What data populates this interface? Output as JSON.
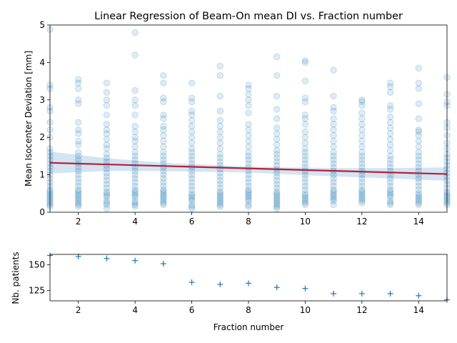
{
  "chart_data": [
    {
      "type": "scatter",
      "title": "Linear Regression of Beam-On mean DI vs. Fraction number",
      "xlabel": "",
      "ylabel": "Mean Isocenter Deviation [mm]",
      "xlim": [
        1,
        15
      ],
      "ylim": [
        0,
        5
      ],
      "xticks": [
        2,
        4,
        6,
        8,
        10,
        12,
        14
      ],
      "yticks": [
        0,
        1,
        2,
        3,
        4,
        5
      ],
      "grid": false,
      "colors": {
        "points": "#1f77b4",
        "regression": "#b22234",
        "ci_band": "#c6dbef"
      },
      "regression": {
        "x": [
          1,
          15
        ],
        "y": [
          1.32,
          1.02
        ]
      },
      "confidence_band": {
        "x": [
          1,
          3,
          5,
          8,
          11,
          13,
          15
        ],
        "upper": [
          1.62,
          1.44,
          1.32,
          1.22,
          1.18,
          1.18,
          1.2
        ],
        "lower": [
          1.04,
          1.1,
          1.1,
          1.06,
          0.96,
          0.9,
          0.84
        ]
      },
      "point_groups": [
        {
          "x": 1,
          "y": [
            4.88,
            3.4,
            3.3,
            2.8,
            2.7,
            2.4,
            2.2,
            2.0,
            1.7,
            1.6,
            1.5,
            1.4,
            1.3,
            1.2,
            1.1,
            1.0,
            0.9,
            0.8,
            0.7,
            0.6,
            0.55,
            0.5,
            0.45,
            0.4,
            0.35,
            0.3,
            0.25,
            0.2,
            0.15
          ]
        },
        {
          "x": 2,
          "y": [
            3.55,
            3.45,
            3.3,
            3.0,
            2.9,
            2.4,
            2.2,
            2.1,
            1.9,
            1.8,
            1.6,
            1.5,
            1.4,
            1.3,
            1.2,
            1.1,
            1.0,
            0.9,
            0.8,
            0.7,
            0.6,
            0.55,
            0.5,
            0.45,
            0.4,
            0.35,
            0.3,
            0.25,
            0.2,
            0.15
          ]
        },
        {
          "x": 3,
          "y": [
            3.45,
            3.2,
            3.0,
            2.85,
            2.6,
            2.35,
            2.2,
            2.1,
            1.95,
            1.8,
            1.7,
            1.55,
            1.45,
            1.35,
            1.25,
            1.15,
            1.05,
            0.95,
            0.85,
            0.75,
            0.65,
            0.55,
            0.5,
            0.45,
            0.4,
            0.3,
            0.25,
            0.2,
            0.1
          ]
        },
        {
          "x": 4,
          "y": [
            4.8,
            4.2,
            3.25,
            3.0,
            2.85,
            2.6,
            2.3,
            2.15,
            2.0,
            1.9,
            1.75,
            1.6,
            1.5,
            1.4,
            1.3,
            1.2,
            1.1,
            1.0,
            0.9,
            0.8,
            0.7,
            0.6,
            0.55,
            0.5,
            0.45,
            0.4,
            0.3,
            0.25,
            0.2,
            0.15
          ]
        },
        {
          "x": 5,
          "y": [
            3.65,
            3.45,
            3.05,
            2.95,
            2.6,
            2.5,
            2.3,
            2.2,
            2.05,
            1.9,
            1.75,
            1.6,
            1.5,
            1.4,
            1.3,
            1.2,
            1.1,
            1.0,
            0.9,
            0.8,
            0.7,
            0.6,
            0.55,
            0.5,
            0.45,
            0.4,
            0.35,
            0.3,
            0.25,
            0.2
          ]
        },
        {
          "x": 6,
          "y": [
            3.45,
            3.05,
            2.95,
            2.7,
            2.6,
            2.45,
            2.3,
            2.15,
            2.0,
            1.85,
            1.7,
            1.6,
            1.5,
            1.4,
            1.3,
            1.2,
            1.1,
            1.0,
            0.9,
            0.8,
            0.7,
            0.6,
            0.5,
            0.45,
            0.4,
            0.35,
            0.3,
            0.2,
            0.15,
            0.1
          ]
        },
        {
          "x": 7,
          "y": [
            3.9,
            3.65,
            3.1,
            2.7,
            2.45,
            2.3,
            2.15,
            2.0,
            1.85,
            1.7,
            1.55,
            1.45,
            1.35,
            1.25,
            1.15,
            1.05,
            0.95,
            0.85,
            0.75,
            0.65,
            0.55,
            0.5,
            0.45,
            0.4,
            0.35,
            0.3,
            0.25,
            0.2,
            0.15
          ]
        },
        {
          "x": 8,
          "y": [
            3.4,
            3.3,
            3.15,
            3.0,
            2.85,
            2.65,
            2.35,
            2.2,
            2.05,
            1.9,
            1.75,
            1.6,
            1.5,
            1.4,
            1.3,
            1.2,
            1.1,
            1.0,
            0.9,
            0.8,
            0.7,
            0.6,
            0.55,
            0.5,
            0.45,
            0.4,
            0.35,
            0.3,
            0.2,
            0.15
          ]
        },
        {
          "x": 9,
          "y": [
            4.15,
            3.65,
            3.1,
            2.75,
            2.5,
            2.25,
            2.1,
            1.95,
            1.8,
            1.65,
            1.55,
            1.45,
            1.35,
            1.25,
            1.15,
            1.05,
            0.95,
            0.85,
            0.75,
            0.65,
            0.55,
            0.5,
            0.45,
            0.4,
            0.35,
            0.3,
            0.25,
            0.2,
            0.15,
            0.1
          ]
        },
        {
          "x": 10,
          "y": [
            4.05,
            4.0,
            3.5,
            3.05,
            2.95,
            2.6,
            2.5,
            2.35,
            2.15,
            2.0,
            1.85,
            1.7,
            1.6,
            1.5,
            1.4,
            1.3,
            1.2,
            1.1,
            1.0,
            0.9,
            0.8,
            0.7,
            0.6,
            0.5,
            0.45,
            0.4,
            0.35,
            0.3,
            0.25,
            0.2
          ]
        },
        {
          "x": 11,
          "y": [
            3.8,
            3.1,
            2.8,
            2.7,
            2.5,
            2.35,
            2.2,
            2.05,
            1.9,
            1.75,
            1.6,
            1.5,
            1.4,
            1.3,
            1.2,
            1.1,
            1.0,
            0.9,
            0.8,
            0.7,
            0.6,
            0.55,
            0.5,
            0.45,
            0.4,
            0.35,
            0.3,
            0.2
          ]
        },
        {
          "x": 12,
          "y": [
            3.0,
            2.95,
            2.85,
            2.65,
            2.5,
            2.35,
            2.2,
            2.05,
            1.9,
            1.75,
            1.6,
            1.5,
            1.4,
            1.3,
            1.2,
            1.1,
            1.0,
            0.9,
            0.8,
            0.7,
            0.6,
            0.55,
            0.5,
            0.45,
            0.4,
            0.35,
            0.3,
            0.25
          ]
        },
        {
          "x": 13,
          "y": [
            3.45,
            3.35,
            3.2,
            2.85,
            2.75,
            2.55,
            2.4,
            2.25,
            2.1,
            1.95,
            1.8,
            1.65,
            1.5,
            1.4,
            1.3,
            1.2,
            1.1,
            1.0,
            0.9,
            0.8,
            0.7,
            0.6,
            0.55,
            0.5,
            0.45,
            0.4,
            0.3,
            0.25,
            0.2
          ]
        },
        {
          "x": 14,
          "y": [
            3.85,
            3.45,
            3.3,
            2.9,
            2.5,
            2.2,
            2.15,
            2.05,
            1.9,
            1.75,
            1.6,
            1.5,
            1.4,
            1.3,
            1.2,
            1.1,
            1.0,
            0.9,
            0.8,
            0.7,
            0.6,
            0.5,
            0.45,
            0.4,
            0.35,
            0.3,
            0.25,
            0.2
          ]
        },
        {
          "x": 15,
          "y": [
            3.6,
            3.15,
            2.95,
            2.85,
            2.4,
            2.25,
            2.05,
            1.85,
            1.7,
            1.55,
            1.45,
            1.35,
            1.25,
            1.15,
            1.05,
            0.95,
            0.85,
            0.75,
            0.65,
            0.55,
            0.5,
            0.45,
            0.4,
            0.35,
            0.3,
            0.25,
            0.2
          ]
        }
      ]
    },
    {
      "type": "scatter",
      "xlabel": "Fraction number",
      "ylabel": "Nb. patients",
      "xlim": [
        1,
        15
      ],
      "ylim": [
        115,
        160
      ],
      "xticks": [
        2,
        4,
        6,
        8,
        10,
        12,
        14
      ],
      "yticks": [
        125,
        150
      ],
      "marker": "+",
      "color": "#1f77b4",
      "x": [
        1,
        2,
        3,
        4,
        5,
        6,
        7,
        8,
        9,
        10,
        11,
        12,
        13,
        14,
        15
      ],
      "y": [
        159,
        158,
        156,
        154,
        151,
        133,
        131,
        132,
        128,
        127,
        122,
        122,
        122,
        120,
        116
      ]
    }
  ]
}
